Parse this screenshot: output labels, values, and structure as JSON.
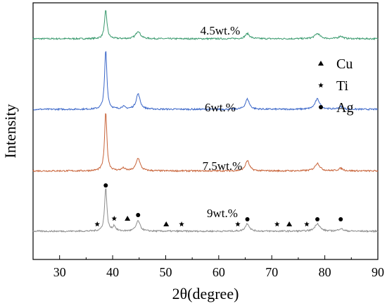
{
  "chart_data": {
    "type": "line",
    "title": "",
    "xlabel": "2θ(degree)",
    "ylabel": "Intensity",
    "xlim": [
      25,
      90
    ],
    "x_ticks": [
      30,
      40,
      50,
      60,
      70,
      80,
      90
    ],
    "y_ticks_shown": false,
    "grid": false,
    "legend": {
      "position": "right",
      "entries": [
        {
          "marker": "triangle",
          "label": "Cu"
        },
        {
          "marker": "star",
          "label": "Ti"
        },
        {
          "marker": "circle",
          "label": "Ag"
        }
      ]
    },
    "peak_centers": [
      38.7,
      44.8,
      65.4,
      78.6,
      83.0
    ],
    "series": [
      {
        "name": "4.5wt.%",
        "color": "#3a9a6e",
        "baseline": 0.86,
        "peaks": [
          [
            38.7,
            0.11,
            0.28
          ],
          [
            44.8,
            0.03,
            0.5
          ],
          [
            65.4,
            0.02,
            0.5
          ],
          [
            78.6,
            0.02,
            0.6
          ],
          [
            83.0,
            0.01,
            0.5
          ]
        ]
      },
      {
        "name": "6wt.%",
        "color": "#3a66c8",
        "baseline": 0.585,
        "peaks": [
          [
            38.7,
            0.23,
            0.26
          ],
          [
            44.8,
            0.06,
            0.45
          ],
          [
            42.0,
            0.01,
            0.4
          ],
          [
            65.4,
            0.04,
            0.45
          ],
          [
            78.6,
            0.04,
            0.55
          ],
          [
            83.0,
            0.01,
            0.5
          ]
        ]
      },
      {
        "name": "7.5wt.%",
        "color": "#c8643a",
        "baseline": 0.345,
        "peaks": [
          [
            38.7,
            0.23,
            0.26
          ],
          [
            44.8,
            0.05,
            0.45
          ],
          [
            42.0,
            0.01,
            0.4
          ],
          [
            65.4,
            0.04,
            0.45
          ],
          [
            78.6,
            0.03,
            0.55
          ],
          [
            83.0,
            0.01,
            0.5
          ]
        ]
      },
      {
        "name": "9wt.%",
        "color": "#8c8c8c",
        "baseline": 0.11,
        "peaks": [
          [
            38.7,
            0.17,
            0.26
          ],
          [
            40.3,
            0.02,
            0.3
          ],
          [
            44.8,
            0.04,
            0.45
          ],
          [
            65.4,
            0.03,
            0.45
          ],
          [
            78.6,
            0.03,
            0.55
          ],
          [
            83.0,
            0.01,
            0.5
          ]
        ]
      }
    ],
    "markers_on_9wt": [
      {
        "type": "circle",
        "x": 38.7
      },
      {
        "type": "star",
        "x": 37.1
      },
      {
        "type": "star",
        "x": 40.3
      },
      {
        "type": "triangle",
        "x": 42.8
      },
      {
        "type": "circle",
        "x": 44.8
      },
      {
        "type": "triangle",
        "x": 50.1
      },
      {
        "type": "star",
        "x": 53.0
      },
      {
        "type": "star",
        "x": 63.6
      },
      {
        "type": "circle",
        "x": 65.4
      },
      {
        "type": "star",
        "x": 71.0
      },
      {
        "type": "triangle",
        "x": 73.3
      },
      {
        "type": "star",
        "x": 76.6
      },
      {
        "type": "circle",
        "x": 78.6
      },
      {
        "type": "circle",
        "x": 83.0
      }
    ]
  }
}
